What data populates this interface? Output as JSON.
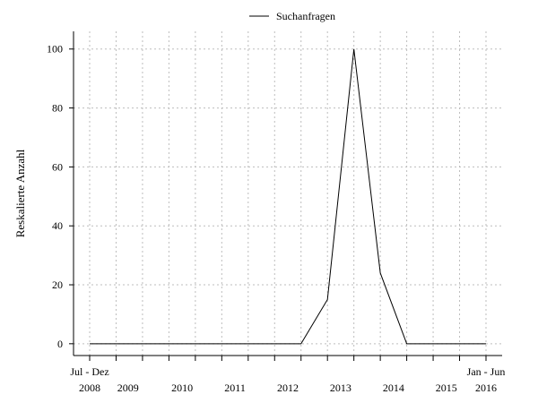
{
  "chart_data": {
    "type": "line",
    "ylabel": "Reskalierte Anzahl",
    "ylim": [
      -4,
      106
    ],
    "yticks": [
      0,
      20,
      40,
      60,
      80,
      100
    ],
    "x_range": [
      0,
      15
    ],
    "grid": true,
    "legend_position": "top-center",
    "series": [
      {
        "name": "Suchanfragen",
        "color": "#000000",
        "values": [
          0,
          0,
          0,
          0,
          0,
          0,
          0,
          0,
          0,
          15,
          100,
          24,
          0,
          0,
          0,
          0
        ]
      }
    ],
    "period_labels": [
      "Jul - Dez",
      "",
      "",
      "",
      "",
      "",
      "",
      "",
      "",
      "",
      "",
      "",
      "",
      "",
      "",
      "Jan - Jun"
    ],
    "x_tick_labels": [
      {
        "label": "2008",
        "pos": 0
      },
      {
        "label": "2009",
        "pos": 1.45
      },
      {
        "label": "2010",
        "pos": 3.5
      },
      {
        "label": "2011",
        "pos": 5.5
      },
      {
        "label": "2012",
        "pos": 7.5
      },
      {
        "label": "2013",
        "pos": 9.5
      },
      {
        "label": "2014",
        "pos": 11.5
      },
      {
        "label": "2015",
        "pos": 13.5
      },
      {
        "label": "2016",
        "pos": 15
      }
    ]
  }
}
